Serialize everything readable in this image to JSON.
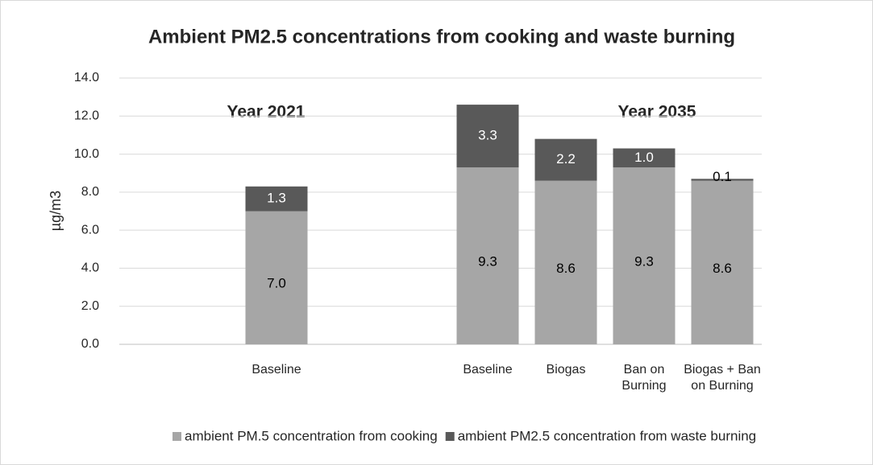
{
  "chart_data": {
    "type": "stacked_bar",
    "title": "Ambient PM2.5 concentrations from cooking and waste burning",
    "y_label": "µg/m3",
    "annotations": [
      "Year 2021",
      "Year 2035"
    ],
    "categories": [
      "Baseline",
      "Baseline",
      "Biogas",
      "Ban on Burning",
      "Biogas + Ban on Burning"
    ],
    "series": [
      {
        "name": "ambient PM.5 concentration from cooking",
        "color": "#a6a6a6",
        "values": [
          7.0,
          9.3,
          8.6,
          9.3,
          8.6
        ],
        "value_labels": [
          "7.0",
          "9.3",
          "8.6",
          "9.3",
          "8.6"
        ]
      },
      {
        "name": "ambient PM2.5 concentration from waste burning",
        "color": "#595959",
        "values": [
          1.3,
          3.3,
          2.2,
          1.0,
          0.1
        ],
        "value_labels": [
          "1.3",
          "3.3",
          "2.2",
          "1.0",
          "0.1"
        ]
      }
    ],
    "ylim": [
      0,
      14
    ],
    "yticks": [
      {
        "value": 0,
        "label": "0.0"
      },
      {
        "value": 2,
        "label": "2.0"
      },
      {
        "value": 4,
        "label": "4.0"
      },
      {
        "value": 6,
        "label": "6.0"
      },
      {
        "value": 8,
        "label": "8.0"
      },
      {
        "value": 10,
        "label": "10.0"
      },
      {
        "value": 12,
        "label": "12.0"
      },
      {
        "value": 14,
        "label": "14.0"
      }
    ],
    "grid": true,
    "legend": "bottom"
  }
}
